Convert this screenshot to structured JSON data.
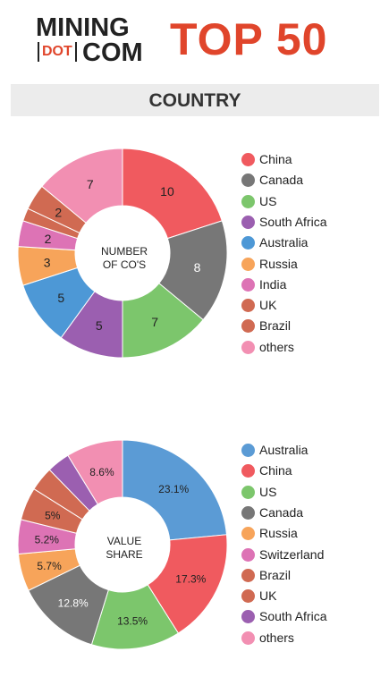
{
  "header": {
    "logo_top": "MINING",
    "logo_dot": "DOT",
    "logo_com": "COM",
    "title": "TOP 50"
  },
  "section": {
    "title": "COUNTRY"
  },
  "chart_data": [
    {
      "type": "pie",
      "center_label": [
        "NUMBER",
        "OF CO'S"
      ],
      "categories": [
        "China",
        "Canada",
        "US",
        "South Africa",
        "Australia",
        "Russia",
        "India",
        "UK",
        "Brazil",
        "others"
      ],
      "values": [
        10,
        8,
        7,
        5,
        5,
        3,
        2,
        1,
        2,
        7
      ],
      "data_labels": [
        "10",
        "8",
        "7",
        "5",
        "5",
        "3",
        "2",
        "",
        "2",
        "7"
      ],
      "colors": [
        "#f05a5f",
        "#777777",
        "#7cc66c",
        "#9b5fb0",
        "#4d98d6",
        "#f7a45a",
        "#dd73b5",
        "#d06a52",
        "#d06a52",
        "#f28fb2"
      ],
      "legend_position": "right"
    },
    {
      "type": "pie",
      "center_label": [
        "VALUE",
        "SHARE"
      ],
      "categories": [
        "Australia",
        "China",
        "US",
        "Canada",
        "Russia",
        "Switzerland",
        "Brazil",
        "UK",
        "South Africa",
        "others"
      ],
      "values": [
        23.1,
        17.3,
        13.5,
        12.8,
        5.7,
        5.2,
        5.0,
        3.7,
        3.5,
        8.6
      ],
      "data_labels": [
        "23.1%",
        "17.3%",
        "13.5%",
        "12.8%",
        "5.7%",
        "5.2%",
        "5%",
        "",
        "",
        "8.6%"
      ],
      "colors": [
        "#5b9bd5",
        "#f05a5f",
        "#7cc66c",
        "#777777",
        "#f7a45a",
        "#dd73b5",
        "#d06a52",
        "#d06a52",
        "#9b5fb0",
        "#f28fb2"
      ],
      "legend_position": "right"
    }
  ]
}
